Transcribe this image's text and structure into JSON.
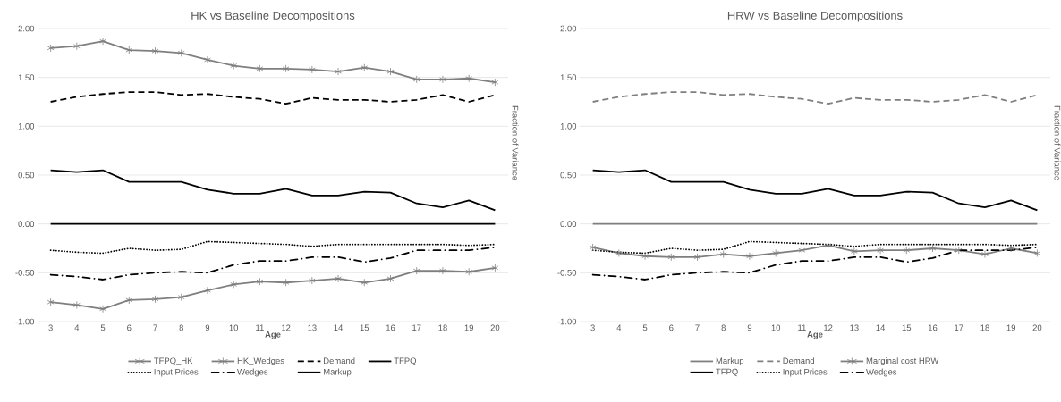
{
  "chart_data": [
    {
      "type": "line",
      "title": "HK vs Baseline Decompositions",
      "xlabel": "Age",
      "y2label": "Fraction of Variance",
      "categories": [
        "3",
        "4",
        "5",
        "6",
        "7",
        "8",
        "9",
        "10",
        "11",
        "12",
        "13",
        "14",
        "15",
        "16",
        "17",
        "18",
        "19",
        "20"
      ],
      "ylim": [
        -1,
        2
      ],
      "yticks": [
        {
          "value": -1,
          "label": "-1.00"
        },
        {
          "value": -0.5,
          "label": "-0.50"
        },
        {
          "value": 0,
          "label": "0.00"
        },
        {
          "value": 0.5,
          "label": "0.50"
        },
        {
          "value": 1,
          "label": "1.00"
        },
        {
          "value": 1.5,
          "label": "1.50"
        },
        {
          "value": 2,
          "label": "2.00"
        }
      ],
      "grid": "y",
      "legend": "bottom",
      "series": [
        {
          "name": "TFPQ_HK",
          "color": "#7f7f7f",
          "marker": "cross",
          "line_style": "solid",
          "values": [
            1.8,
            1.82,
            1.87,
            1.78,
            1.77,
            1.75,
            1.68,
            1.62,
            1.59,
            1.59,
            1.58,
            1.56,
            1.6,
            1.56,
            1.48,
            1.48,
            1.49,
            1.45
          ]
        },
        {
          "name": "HK_Wedges",
          "color": "#7f7f7f",
          "marker": "cross",
          "line_style": "solid",
          "values": [
            -0.8,
            -0.83,
            -0.87,
            -0.78,
            -0.77,
            -0.75,
            -0.68,
            -0.62,
            -0.59,
            -0.6,
            -0.58,
            -0.56,
            -0.6,
            -0.56,
            -0.48,
            -0.48,
            -0.49,
            -0.45
          ]
        },
        {
          "name": "Demand",
          "color": "#000000",
          "marker": "none",
          "line_style": "dashed",
          "values": [
            1.25,
            1.3,
            1.33,
            1.35,
            1.35,
            1.32,
            1.33,
            1.3,
            1.28,
            1.23,
            1.29,
            1.27,
            1.27,
            1.25,
            1.27,
            1.32,
            1.25,
            1.32
          ]
        },
        {
          "name": "TFPQ",
          "color": "#000000",
          "marker": "none",
          "line_style": "solid",
          "values": [
            0.55,
            0.53,
            0.55,
            0.43,
            0.43,
            0.43,
            0.35,
            0.31,
            0.31,
            0.36,
            0.29,
            0.29,
            0.33,
            0.32,
            0.21,
            0.17,
            0.24,
            0.14
          ]
        },
        {
          "name": "Input Prices",
          "color": "#000000",
          "marker": "none",
          "line_style": "dotted",
          "values": [
            -0.27,
            -0.29,
            -0.3,
            -0.25,
            -0.27,
            -0.26,
            -0.18,
            -0.19,
            -0.2,
            -0.21,
            -0.23,
            -0.21,
            -0.21,
            -0.21,
            -0.21,
            -0.21,
            -0.22,
            -0.21
          ]
        },
        {
          "name": "Wedges",
          "color": "#000000",
          "marker": "none",
          "line_style": "dashdot",
          "values": [
            -0.52,
            -0.54,
            -0.57,
            -0.52,
            -0.5,
            -0.49,
            -0.5,
            -0.42,
            -0.38,
            -0.38,
            -0.34,
            -0.34,
            -0.39,
            -0.35,
            -0.27,
            -0.27,
            -0.27,
            -0.24
          ]
        },
        {
          "name": "Markup",
          "color": "#000000",
          "marker": "none",
          "line_style": "solid",
          "values": [
            0,
            0,
            0,
            0,
            0,
            0,
            0,
            0,
            0,
            0,
            0,
            0,
            0,
            0,
            0,
            0,
            0,
            0
          ]
        }
      ]
    },
    {
      "type": "line",
      "title": "HRW vs Baseline Decompositions",
      "xlabel": "Age",
      "y2label": "Fraction of Variance",
      "categories": [
        "3",
        "4",
        "5",
        "6",
        "7",
        "8",
        "9",
        "10",
        "11",
        "12",
        "13",
        "14",
        "15",
        "16",
        "17",
        "18",
        "19",
        "20"
      ],
      "ylim": [
        -1,
        2
      ],
      "yticks": [
        {
          "value": -1,
          "label": "-1.00"
        },
        {
          "value": -0.5,
          "label": "-0.50"
        },
        {
          "value": 0,
          "label": "0.00"
        },
        {
          "value": 0.5,
          "label": "0.50"
        },
        {
          "value": 1,
          "label": "1.00"
        },
        {
          "value": 1.5,
          "label": "1.50"
        },
        {
          "value": 2,
          "label": "2.00"
        }
      ],
      "grid": "y",
      "legend": "bottom",
      "series": [
        {
          "name": "Markup",
          "color": "#7f7f7f",
          "marker": "none",
          "line_style": "solid",
          "values": [
            0,
            0,
            0,
            0,
            0,
            0,
            0,
            0,
            0,
            0,
            0,
            0,
            0,
            0,
            0,
            0,
            0,
            0
          ]
        },
        {
          "name": "Demand",
          "color": "#7f7f7f",
          "marker": "none",
          "line_style": "dashed",
          "values": [
            1.25,
            1.3,
            1.33,
            1.35,
            1.35,
            1.32,
            1.33,
            1.3,
            1.28,
            1.23,
            1.29,
            1.27,
            1.27,
            1.25,
            1.27,
            1.32,
            1.25,
            1.32
          ]
        },
        {
          "name": "Marginal cost HRW",
          "color": "#7f7f7f",
          "marker": "cross",
          "line_style": "solid",
          "values": [
            -0.24,
            -0.3,
            -0.33,
            -0.34,
            -0.34,
            -0.31,
            -0.33,
            -0.3,
            -0.27,
            -0.22,
            -0.28,
            -0.27,
            -0.27,
            -0.25,
            -0.27,
            -0.31,
            -0.25,
            -0.3
          ]
        },
        {
          "name": "TFPQ",
          "color": "#000000",
          "marker": "none",
          "line_style": "solid",
          "values": [
            0.55,
            0.53,
            0.55,
            0.43,
            0.43,
            0.43,
            0.35,
            0.31,
            0.31,
            0.36,
            0.29,
            0.29,
            0.33,
            0.32,
            0.21,
            0.17,
            0.24,
            0.14
          ]
        },
        {
          "name": "Input Prices",
          "color": "#000000",
          "marker": "none",
          "line_style": "dotted",
          "values": [
            -0.27,
            -0.29,
            -0.3,
            -0.25,
            -0.27,
            -0.26,
            -0.18,
            -0.19,
            -0.2,
            -0.21,
            -0.23,
            -0.21,
            -0.21,
            -0.21,
            -0.21,
            -0.21,
            -0.22,
            -0.21
          ]
        },
        {
          "name": "Wedges",
          "color": "#000000",
          "marker": "none",
          "line_style": "dashdot",
          "values": [
            -0.52,
            -0.54,
            -0.57,
            -0.52,
            -0.5,
            -0.49,
            -0.5,
            -0.42,
            -0.38,
            -0.38,
            -0.34,
            -0.34,
            -0.39,
            -0.35,
            -0.27,
            -0.27,
            -0.27,
            -0.24
          ]
        }
      ]
    }
  ]
}
